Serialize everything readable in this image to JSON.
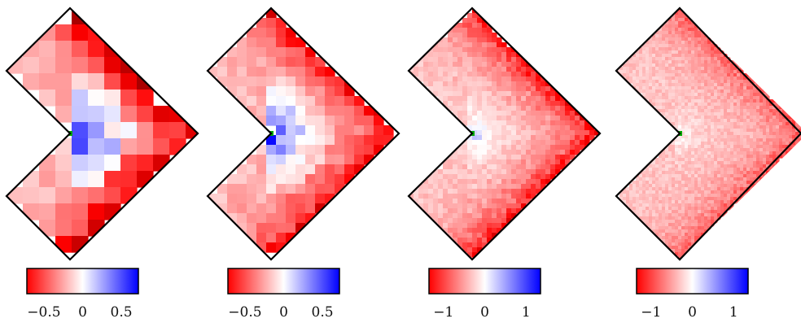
{
  "figure": {
    "panels": [
      {
        "id": "p1",
        "hot_spots": 0.85,
        "blue": 0.9,
        "cell_scale": "coarse",
        "colorbar": {
          "ticks": [
            "−0.5",
            "0",
            "0.5"
          ],
          "tick_values": [
            -0.5,
            0,
            0.5
          ],
          "range": [
            -0.72,
            0.72
          ]
        }
      },
      {
        "id": "p2",
        "hot_spots": 0.7,
        "blue": 0.75,
        "cell_scale": "medium",
        "colorbar": {
          "ticks": [
            "−0.5",
            "0",
            "0.5"
          ],
          "tick_values": [
            -0.5,
            0,
            0.5
          ],
          "range": [
            -0.72,
            0.72
          ]
        }
      },
      {
        "id": "p3",
        "hot_spots": 0.75,
        "blue": 0.35,
        "cell_scale": "fine",
        "colorbar": {
          "ticks": [
            "−1",
            "0",
            "1"
          ],
          "tick_values": [
            -1,
            0,
            1
          ],
          "range": [
            -1.35,
            1.35
          ]
        }
      },
      {
        "id": "p4",
        "hot_spots": 0.45,
        "blue": 0.2,
        "cell_scale": "very-fine",
        "colorbar": {
          "ticks": [
            "−1",
            "0",
            "1"
          ],
          "tick_values": [
            -1,
            0,
            1
          ],
          "range": [
            -1.35,
            1.35
          ]
        }
      }
    ],
    "colors": {
      "negative": "#ff0000",
      "zero": "#ffffff",
      "positive": "#0000ff",
      "singularity": "#00aa00",
      "outline": "#000000"
    }
  }
}
